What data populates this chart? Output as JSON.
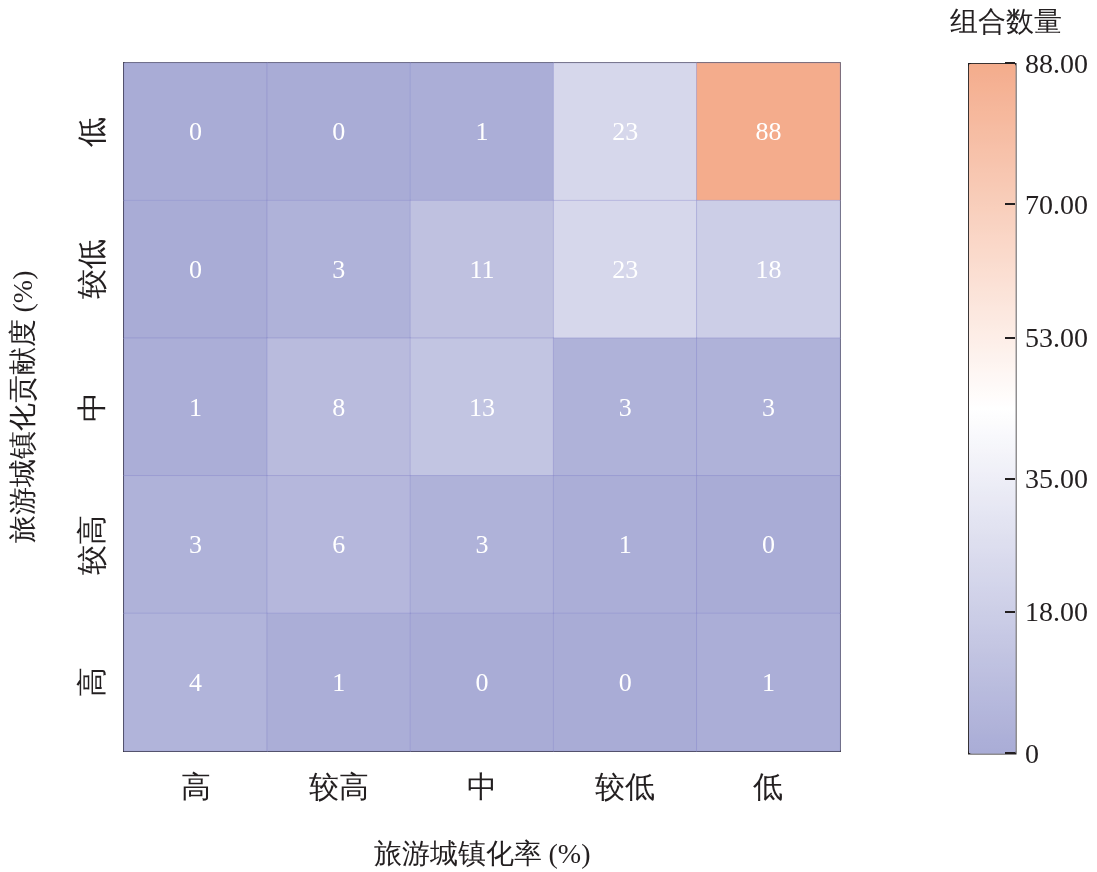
{
  "chart_data": {
    "type": "heatmap",
    "xlabel": "旅游城镇化率 (%)",
    "ylabel": "旅游城镇化贡献度 (%)",
    "clabel": "组合数量",
    "categories": [
      "高",
      "较高",
      "中",
      "较低",
      "低"
    ],
    "y_categories": [
      "低",
      "较低",
      "中",
      "较高",
      "高"
    ],
    "cells": [
      [
        0,
        0,
        1,
        23,
        88
      ],
      [
        0,
        3,
        11,
        23,
        18
      ],
      [
        1,
        8,
        13,
        3,
        3
      ],
      [
        3,
        6,
        3,
        1,
        0
      ],
      [
        4,
        1,
        0,
        0,
        1
      ]
    ],
    "colors": [
      "#a9acd6",
      "#ffffff",
      "#f4ac8c"
    ],
    "clim": [
      0,
      88
    ],
    "cticks": [
      0,
      {
        "value": 18,
        "label": "18.00"
      },
      {
        "value": 35,
        "label": "35.00"
      },
      {
        "value": 53,
        "label": "53.00"
      },
      {
        "value": 70,
        "label": "70.00"
      },
      {
        "value": 88,
        "label": "88.00"
      }
    ],
    "data_labels": true
  }
}
